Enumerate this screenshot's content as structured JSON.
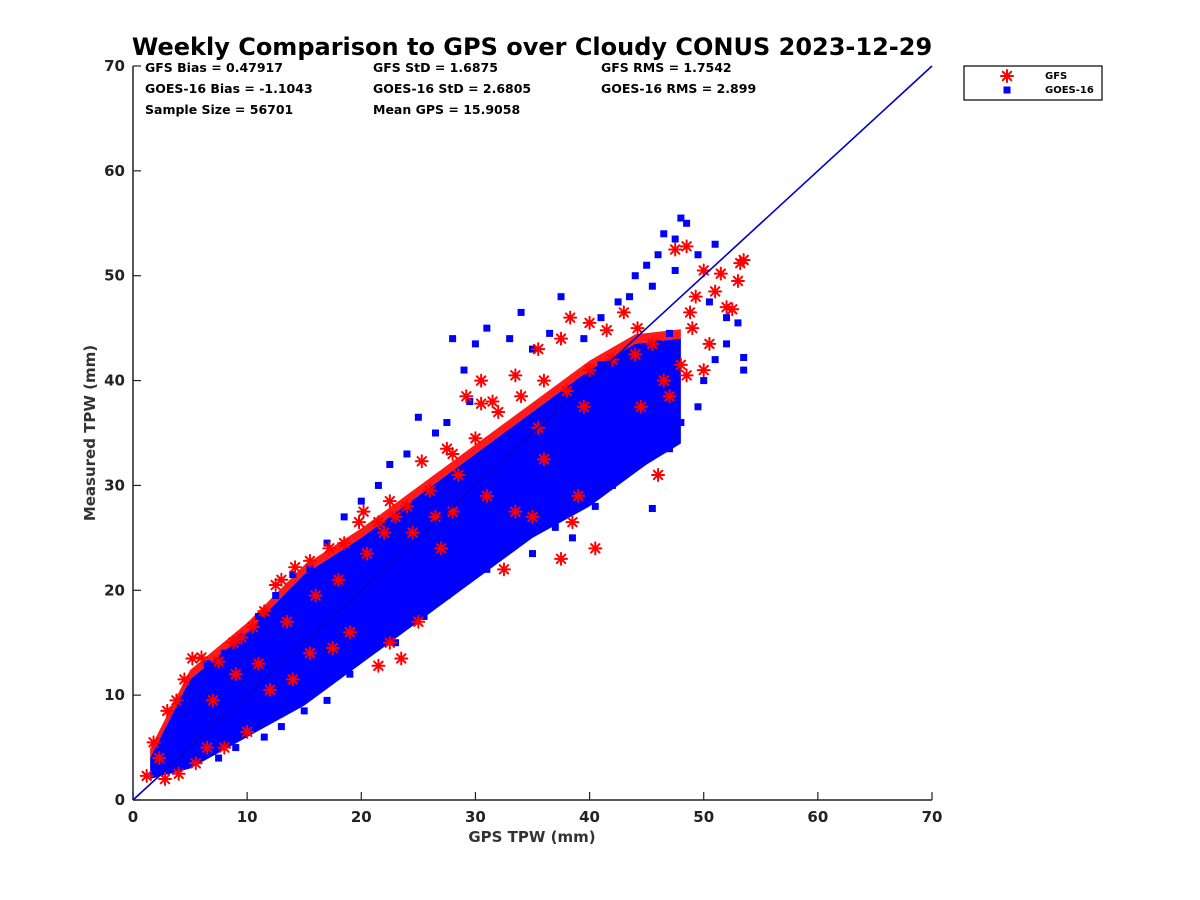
{
  "chart_data": {
    "type": "scatter",
    "title": "Weekly Comparison to GPS over Cloudy CONUS 2023-12-29",
    "xlabel": "GPS TPW (mm)",
    "ylabel": "Measured TPW (mm)",
    "xlim": [
      0,
      70
    ],
    "ylim": [
      0,
      70
    ],
    "xticks": [
      "0",
      "10",
      "20",
      "30",
      "40",
      "50",
      "60",
      "70"
    ],
    "yticks": [
      "0",
      "10",
      "20",
      "30",
      "40",
      "50",
      "60",
      "70"
    ],
    "grid": false,
    "legend_position": "outside-top-right",
    "reference_line": {
      "x": [
        0,
        70
      ],
      "y": [
        0,
        70
      ],
      "color": "#0000cc"
    },
    "stats": [
      [
        "GFS Bias = 0.47917",
        "GFS StD = 1.6875",
        "GFS RMS = 1.7542"
      ],
      [
        "GOES-16 Bias = -1.1043",
        "GOES-16 StD = 2.6805",
        "GOES-16 RMS = 2.899"
      ],
      [
        "Sample Size = 56701",
        "Mean GPS = 15.9058",
        ""
      ]
    ],
    "series": [
      {
        "name": "GFS",
        "marker": "asterisk",
        "color": "#ff0000",
        "points": [
          [
            1.2,
            2.3
          ],
          [
            1.8,
            5.5
          ],
          [
            2.3,
            4.0
          ],
          [
            3.0,
            8.5
          ],
          [
            3.8,
            9.5
          ],
          [
            4.5,
            11.5
          ],
          [
            5.2,
            13.5
          ],
          [
            6.0,
            13.6
          ],
          [
            7.5,
            13.2
          ],
          [
            8.8,
            15.0
          ],
          [
            9.5,
            15.5
          ],
          [
            10.5,
            16.5
          ],
          [
            11.5,
            18.0
          ],
          [
            12.5,
            20.5
          ],
          [
            13.0,
            21.0
          ],
          [
            14.2,
            22.2
          ],
          [
            15.5,
            22.8
          ],
          [
            17.2,
            24.0
          ],
          [
            18.5,
            24.5
          ],
          [
            19.8,
            26.5
          ],
          [
            20.2,
            27.5
          ],
          [
            21.5,
            26.5
          ],
          [
            22.5,
            28.5
          ],
          [
            23.0,
            27.0
          ],
          [
            25.3,
            32.3
          ],
          [
            27.5,
            33.5
          ],
          [
            29.2,
            38.5
          ],
          [
            30.5,
            37.8
          ],
          [
            33.5,
            40.5
          ],
          [
            35.5,
            43.0
          ],
          [
            37.5,
            44.0
          ],
          [
            38.3,
            46.0
          ],
          [
            40.0,
            45.5
          ],
          [
            41.5,
            44.8
          ],
          [
            43.0,
            46.5
          ],
          [
            44.2,
            45.0
          ],
          [
            45.5,
            43.5
          ],
          [
            46.0,
            31.0
          ],
          [
            47.0,
            38.5
          ],
          [
            47.5,
            52.5
          ],
          [
            48.5,
            52.8
          ],
          [
            48.8,
            46.5
          ],
          [
            49.3,
            48.0
          ],
          [
            50.0,
            50.5
          ],
          [
            50.5,
            43.5
          ],
          [
            51.0,
            48.5
          ],
          [
            52.0,
            47.0
          ],
          [
            52.5,
            46.8
          ],
          [
            53.0,
            49.5
          ],
          [
            53.5,
            51.5
          ],
          [
            53.2,
            51.2
          ],
          [
            51.5,
            50.2
          ],
          [
            49.0,
            45.0
          ],
          [
            48.0,
            41.5
          ],
          [
            50.0,
            41.0
          ],
          [
            48.5,
            40.5
          ],
          [
            46.5,
            40.0
          ],
          [
            44.5,
            37.5
          ],
          [
            40.5,
            24.0
          ],
          [
            37.5,
            23.0
          ],
          [
            38.5,
            26.5
          ],
          [
            39.0,
            29.0
          ],
          [
            35.0,
            27.0
          ],
          [
            36.0,
            32.5
          ],
          [
            33.5,
            27.5
          ],
          [
            32.5,
            22.0
          ],
          [
            31.0,
            29.0
          ],
          [
            28.5,
            31.0
          ],
          [
            27.0,
            24.0
          ],
          [
            25.0,
            17.0
          ],
          [
            21.5,
            12.8
          ],
          [
            23.5,
            13.5
          ],
          [
            22.5,
            15.0
          ],
          [
            19.0,
            16.0
          ],
          [
            17.5,
            14.5
          ],
          [
            15.5,
            14.0
          ],
          [
            14.0,
            11.5
          ],
          [
            12.0,
            10.5
          ],
          [
            10.0,
            6.5
          ],
          [
            8.0,
            5.0
          ],
          [
            6.5,
            5.0
          ],
          [
            5.5,
            3.5
          ],
          [
            4.0,
            2.5
          ],
          [
            2.8,
            2.0
          ],
          [
            7.0,
            9.5
          ],
          [
            9.0,
            12.0
          ],
          [
            11.0,
            13.0
          ],
          [
            13.5,
            17.0
          ],
          [
            16.0,
            19.5
          ],
          [
            18.0,
            21.0
          ],
          [
            20.5,
            23.5
          ],
          [
            22.0,
            25.5
          ],
          [
            24.0,
            28.0
          ],
          [
            26.0,
            29.5
          ],
          [
            28.0,
            33.0
          ],
          [
            30.0,
            34.5
          ],
          [
            32.0,
            37.0
          ],
          [
            34.0,
            38.5
          ],
          [
            36.0,
            40.0
          ],
          [
            38.0,
            39.0
          ],
          [
            40.0,
            41.0
          ],
          [
            42.0,
            42.0
          ],
          [
            44.0,
            42.5
          ],
          [
            30.5,
            40.0
          ],
          [
            31.5,
            38.0
          ],
          [
            24.5,
            25.5
          ],
          [
            26.5,
            27.0
          ],
          [
            28.0,
            27.5
          ],
          [
            35.5,
            35.5
          ],
          [
            39.5,
            37.5
          ]
        ]
      },
      {
        "name": "GOES-16",
        "marker": "square",
        "color": "#0000ff",
        "points": [
          [
            2.0,
            2.5
          ],
          [
            3.0,
            3.0
          ],
          [
            4.0,
            3.5
          ],
          [
            5.0,
            4.5
          ],
          [
            6.0,
            5.5
          ],
          [
            7.0,
            6.0
          ],
          [
            8.0,
            7.5
          ],
          [
            9.0,
            8.0
          ],
          [
            10.0,
            9.0
          ],
          [
            11.0,
            10.0
          ],
          [
            12.0,
            11.0
          ],
          [
            13.0,
            12.0
          ],
          [
            14.0,
            13.0
          ],
          [
            15.0,
            14.0
          ],
          [
            16.0,
            15.0
          ],
          [
            17.0,
            16.5
          ],
          [
            18.0,
            17.0
          ],
          [
            19.0,
            18.0
          ],
          [
            20.0,
            19.0
          ],
          [
            22.0,
            21.0
          ],
          [
            24.0,
            22.5
          ],
          [
            26.0,
            24.5
          ],
          [
            28.0,
            26.5
          ],
          [
            30.0,
            28.0
          ],
          [
            32.0,
            30.0
          ],
          [
            34.0,
            32.0
          ],
          [
            36.0,
            34.0
          ],
          [
            38.0,
            36.0
          ],
          [
            40.0,
            38.0
          ],
          [
            42.0,
            40.0
          ],
          [
            44.0,
            42.0
          ],
          [
            46.0,
            43.5
          ],
          [
            47.0,
            44.5
          ],
          [
            48.0,
            55.5
          ],
          [
            48.5,
            55.0
          ],
          [
            47.5,
            53.5
          ],
          [
            46.5,
            54.0
          ],
          [
            46.0,
            52.0
          ],
          [
            45.0,
            51.0
          ],
          [
            44.0,
            50.0
          ],
          [
            43.5,
            48.0
          ],
          [
            42.5,
            47.5
          ],
          [
            41.0,
            46.0
          ],
          [
            39.5,
            44.0
          ],
          [
            37.5,
            48.0
          ],
          [
            36.5,
            44.5
          ],
          [
            35.0,
            43.0
          ],
          [
            34.0,
            46.5
          ],
          [
            33.0,
            44.0
          ],
          [
            31.0,
            45.0
          ],
          [
            30.0,
            43.5
          ],
          [
            29.0,
            41.0
          ],
          [
            28.0,
            44.0
          ],
          [
            29.5,
            38.0
          ],
          [
            27.5,
            36.0
          ],
          [
            26.5,
            35.0
          ],
          [
            25.0,
            36.5
          ],
          [
            24.0,
            33.0
          ],
          [
            22.5,
            32.0
          ],
          [
            21.5,
            30.0
          ],
          [
            20.0,
            28.5
          ],
          [
            18.5,
            27.0
          ],
          [
            17.0,
            24.5
          ],
          [
            15.5,
            22.0
          ],
          [
            14.0,
            21.5
          ],
          [
            12.5,
            19.5
          ],
          [
            11.0,
            17.5
          ],
          [
            9.5,
            15.5
          ],
          [
            8.0,
            14.0
          ],
          [
            6.5,
            13.0
          ],
          [
            5.0,
            10.5
          ],
          [
            4.0,
            8.0
          ],
          [
            3.0,
            6.0
          ],
          [
            2.5,
            4.5
          ],
          [
            7.5,
            4.0
          ],
          [
            9.0,
            5.0
          ],
          [
            11.5,
            6.0
          ],
          [
            13.0,
            7.0
          ],
          [
            15.0,
            8.5
          ],
          [
            17.0,
            9.5
          ],
          [
            19.0,
            12.0
          ],
          [
            21.0,
            14.5
          ],
          [
            23.0,
            15.0
          ],
          [
            25.5,
            17.5
          ],
          [
            27.5,
            19.5
          ],
          [
            29.0,
            21.5
          ],
          [
            31.0,
            22.0
          ],
          [
            33.0,
            25.0
          ],
          [
            35.0,
            23.5
          ],
          [
            37.0,
            26.0
          ],
          [
            38.5,
            25.0
          ],
          [
            40.5,
            28.0
          ],
          [
            42.0,
            30.0
          ],
          [
            44.0,
            32.0
          ],
          [
            45.5,
            27.8
          ],
          [
            47.0,
            33.5
          ],
          [
            48.0,
            36.0
          ],
          [
            49.5,
            37.5
          ],
          [
            50.0,
            40.0
          ],
          [
            51.0,
            42.0
          ],
          [
            52.0,
            43.5
          ],
          [
            53.0,
            45.5
          ],
          [
            53.5,
            42.2
          ],
          [
            53.5,
            41.0
          ],
          [
            52.0,
            46.0
          ],
          [
            50.5,
            47.5
          ],
          [
            49.5,
            52.0
          ],
          [
            51.0,
            53.0
          ],
          [
            47.5,
            50.5
          ],
          [
            45.5,
            49.0
          ],
          [
            23.0,
            23.5
          ],
          [
            25.0,
            25.0
          ],
          [
            27.0,
            27.0
          ],
          [
            29.0,
            29.0
          ],
          [
            31.0,
            31.0
          ],
          [
            33.0,
            33.0
          ],
          [
            35.0,
            35.0
          ],
          [
            37.0,
            37.0
          ],
          [
            39.0,
            39.5
          ],
          [
            41.0,
            41.5
          ],
          [
            16.5,
            18.0
          ],
          [
            18.5,
            20.0
          ],
          [
            20.5,
            22.0
          ],
          [
            10.5,
            12.0
          ],
          [
            12.5,
            14.0
          ],
          [
            14.5,
            16.0
          ],
          [
            6.0,
            7.0
          ],
          [
            8.5,
            9.5
          ],
          [
            4.5,
            5.0
          ]
        ]
      }
    ]
  }
}
